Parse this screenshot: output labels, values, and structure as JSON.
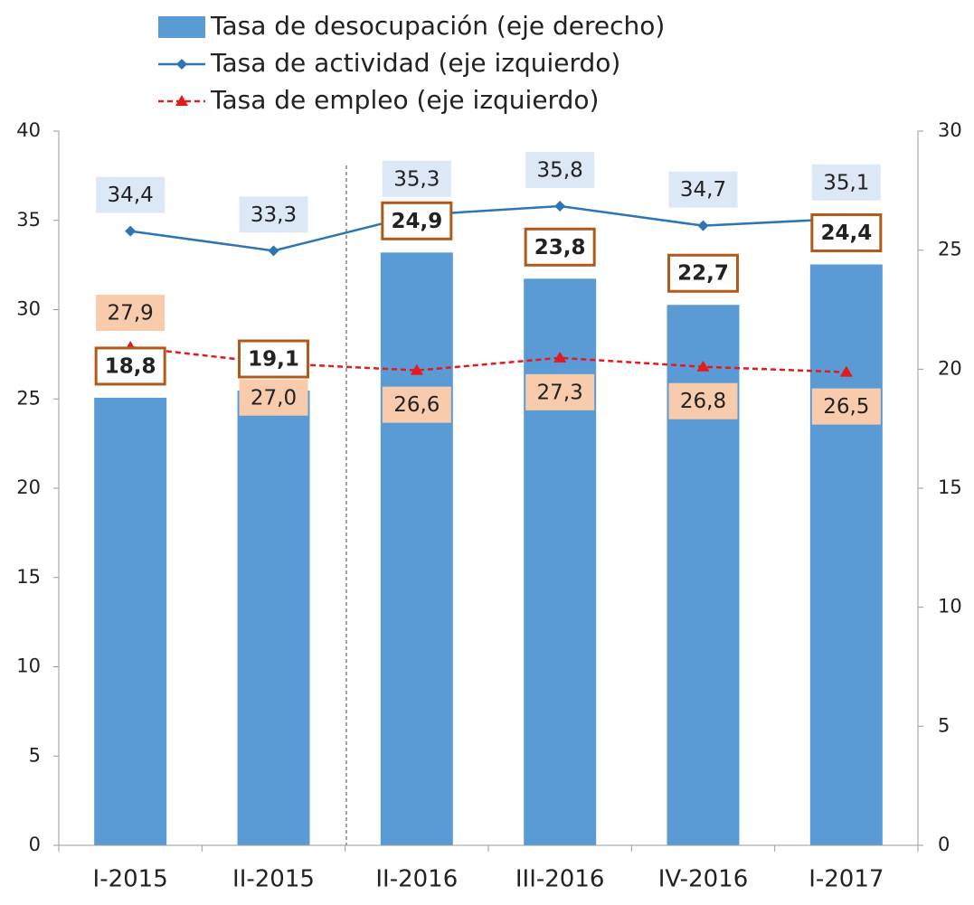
{
  "chart_data": {
    "type": "bar-line",
    "categories": [
      "I-2015",
      "II-2015",
      "II-2016",
      "III-2016",
      "IV-2016",
      "I-2017"
    ],
    "series": [
      {
        "name": "Tasa de desocupación (eje derecho)",
        "type": "bar",
        "axis": "y2",
        "color": "#5b9bd5",
        "values": [
          18.8,
          19.1,
          24.9,
          23.8,
          22.7,
          24.4
        ],
        "value_labels": [
          "18,8",
          "19,1",
          "24,9",
          "23,8",
          "22,7",
          "24,4"
        ]
      },
      {
        "name": "Tasa de actividad (eje izquierdo)",
        "type": "line",
        "axis": "y",
        "color": "#2e75b6",
        "values": [
          34.4,
          33.3,
          35.3,
          35.8,
          34.7,
          35.1
        ],
        "value_labels": [
          "34,4",
          "33,3",
          "35,3",
          "35,8",
          "34,7",
          "35,1"
        ]
      },
      {
        "name": "Tasa de empleo (eje izquierdo)",
        "type": "line",
        "axis": "y",
        "color": "#e41a1c",
        "values": [
          27.9,
          27.0,
          26.6,
          27.3,
          26.8,
          26.5
        ],
        "value_labels": [
          "27,9",
          "27,0",
          "26,6",
          "27,3",
          "26,8",
          "26,5"
        ]
      }
    ],
    "ylim": [
      0,
      40
    ],
    "yticks": [
      0,
      5,
      10,
      15,
      20,
      25,
      30,
      35,
      40
    ],
    "y2lim": [
      0,
      30
    ],
    "y2ticks": [
      0,
      5,
      10,
      15,
      20,
      25,
      30
    ],
    "legend": "top"
  }
}
